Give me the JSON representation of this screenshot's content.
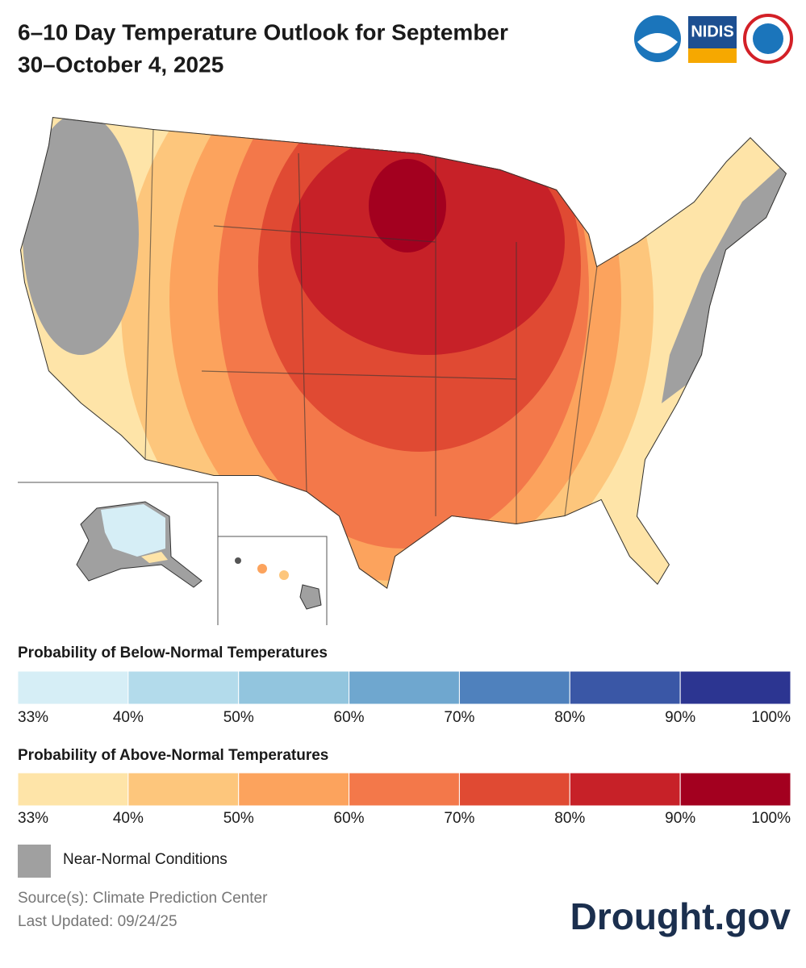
{
  "header": {
    "title_line1": "6–10 Day Temperature Outlook for September",
    "title_line2": "30–October 4, 2025",
    "logo_nidis": "NIDIS"
  },
  "legend_below": {
    "title": "Probability of Below-Normal Temperatures",
    "colors": [
      "#d6eef6",
      "#b3dbeb",
      "#92c5de",
      "#6fa7cf",
      "#4f81bd",
      "#3a57a6",
      "#2c3591"
    ],
    "ticks": [
      "33%",
      "40%",
      "50%",
      "60%",
      "70%",
      "80%",
      "90%",
      "100%"
    ]
  },
  "legend_above": {
    "title": "Probability of Above-Normal Temperatures",
    "colors": [
      "#fee4a8",
      "#fdc67c",
      "#fca35d",
      "#f3784a",
      "#e04a33",
      "#c72128",
      "#a3001f"
    ],
    "ticks": [
      "33%",
      "40%",
      "50%",
      "60%",
      "70%",
      "80%",
      "90%",
      "100%"
    ]
  },
  "near_normal": {
    "label": "Near-Normal Conditions",
    "color": "#a0a0a0"
  },
  "footer": {
    "source": "Source(s): Climate Prediction Center",
    "updated": "Last Updated: 09/24/25",
    "brand": "Drought.gov"
  }
}
